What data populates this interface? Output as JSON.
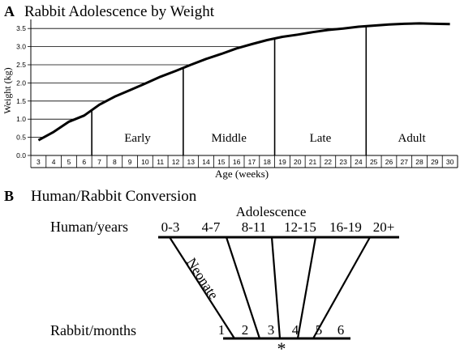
{
  "panel_a": {
    "letter": "A",
    "title": "Rabbit Adolescence by Weight",
    "chart_data": {
      "type": "line",
      "title": "Rabbit Adolescence by Weight",
      "xlabel": "Age (weeks)",
      "ylabel": "Weight (kg)",
      "x_ticks": [
        "3",
        "4",
        "5",
        "6",
        "7",
        "8",
        "9",
        "10",
        "11",
        "12",
        "13",
        "14",
        "15",
        "16",
        "17",
        "18",
        "19",
        "20",
        "21",
        "22",
        "23",
        "24",
        "25",
        "26",
        "27",
        "28",
        "29",
        "30"
      ],
      "y_ticks": [
        "0.0",
        "0.5",
        "1.0",
        "1.5",
        "2.0",
        "2.5",
        "3.0",
        "3.5"
      ],
      "xlim": [
        3,
        31
      ],
      "ylim": [
        0,
        3.75
      ],
      "grid": "horizontal",
      "x": [
        3.5,
        4.5,
        5.5,
        6.5,
        7.5,
        8.5,
        9.5,
        10.5,
        11.5,
        12.5,
        13.5,
        14.5,
        15.5,
        16.5,
        17.5,
        18.5,
        19.5,
        20.5,
        21.5,
        22.5,
        23.5,
        24.5,
        25.5,
        26.5,
        27.5,
        28.5,
        29.5,
        30.5
      ],
      "series": [
        {
          "values": [
            0.42,
            0.65,
            0.93,
            1.1,
            1.4,
            1.62,
            1.8,
            1.98,
            2.17,
            2.33,
            2.5,
            2.66,
            2.8,
            2.95,
            3.07,
            3.18,
            3.27,
            3.33,
            3.4,
            3.46,
            3.5,
            3.55,
            3.58,
            3.61,
            3.63,
            3.64,
            3.63,
            3.62
          ]
        }
      ],
      "stages": [
        {
          "label": "Early",
          "from": 7,
          "to": 12
        },
        {
          "label": "Middle",
          "from": 13,
          "to": 18
        },
        {
          "label": "Late",
          "from": 19,
          "to": 24
        },
        {
          "label": "Adult",
          "from": 25,
          "to": 30
        }
      ]
    }
  },
  "panel_b": {
    "letter": "B",
    "title": "Human/Rabbit Conversion",
    "adolescence_label": "Adolescence",
    "human_label": "Human/years",
    "rabbit_label": "Rabbit/months",
    "neonate_label": "Neonate",
    "human_groups": [
      "0-3",
      "4-7",
      "8-11",
      "12-15",
      "16-19",
      "20+"
    ],
    "rabbit_months": [
      "1",
      "2",
      "3",
      "4",
      "5",
      "6"
    ],
    "marker": "*",
    "marker_color": "#e02020"
  }
}
